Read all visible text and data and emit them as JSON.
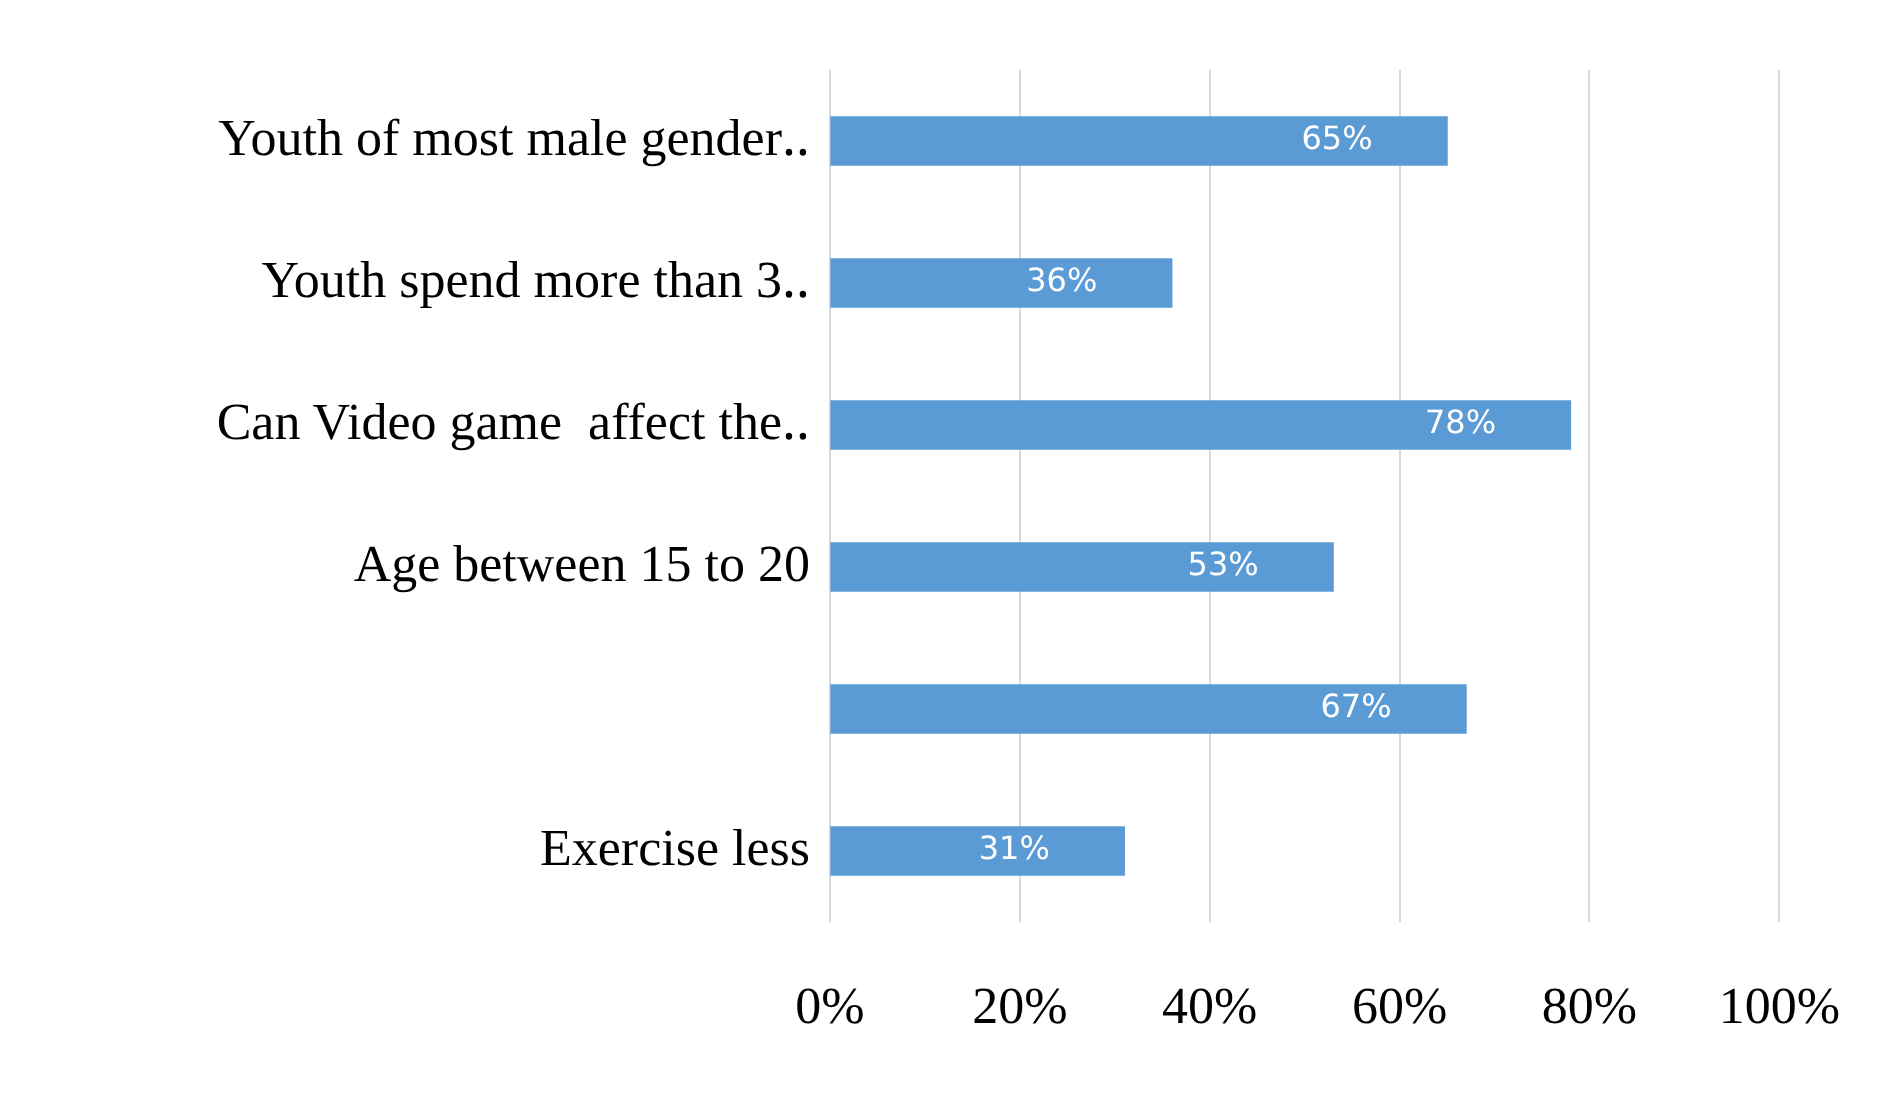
{
  "chart_data": {
    "type": "bar",
    "orientation": "horizontal",
    "categories": [
      "Youth of most male gender‥",
      "Youth spend more than 3‥",
      "Can Video game  affect the‥",
      "Age between 15 to 20",
      null,
      "Exercise less"
    ],
    "values": [
      65,
      36,
      78,
      53,
      67,
      31
    ],
    "value_labels": [
      "65%",
      "36%",
      "78%",
      "53%",
      "67%",
      "31%"
    ],
    "color": "#5b9bd5",
    "xlim": [
      0,
      100
    ],
    "xticks": [
      {
        "value": 0,
        "label": "0%"
      },
      {
        "value": 20,
        "label": "20%"
      },
      {
        "value": 40,
        "label": "40%"
      },
      {
        "value": 60,
        "label": "60%"
      },
      {
        "value": 80,
        "label": "80%"
      },
      {
        "value": 100,
        "label": "100%"
      }
    ],
    "grid": "x",
    "legend": false
  }
}
